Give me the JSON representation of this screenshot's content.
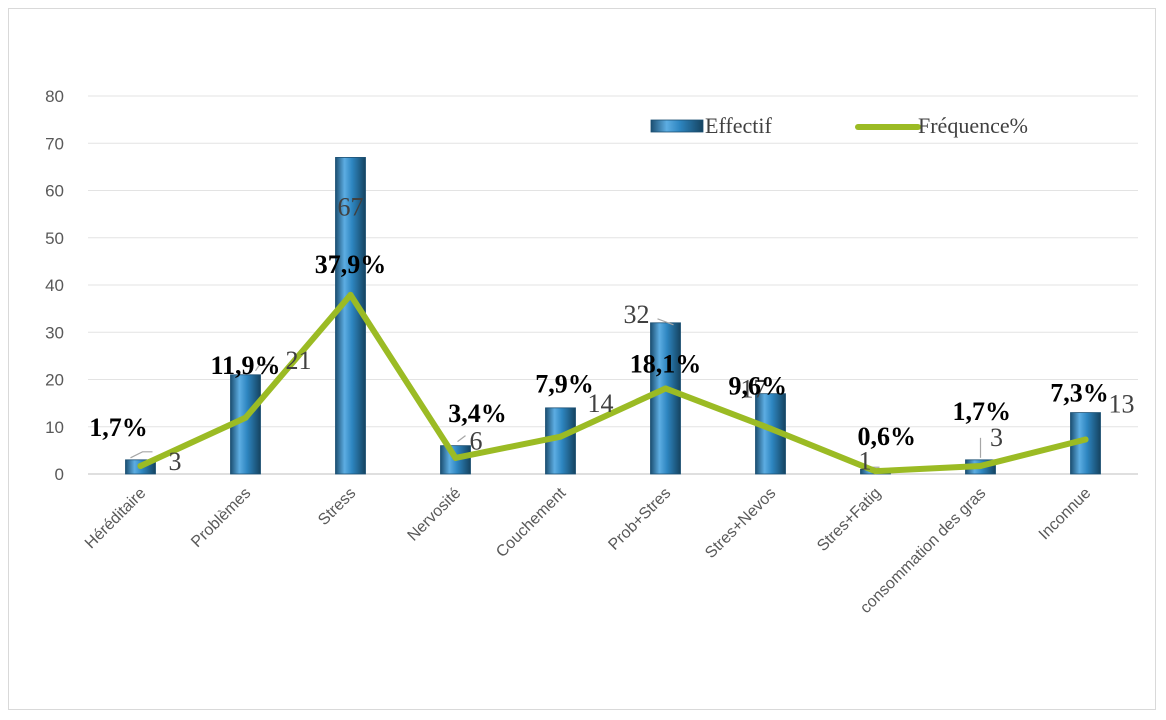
{
  "chart_data": {
    "type": "bar",
    "categories": [
      "Héréditaire",
      "Problèmes",
      "Stress",
      "Nervosité",
      "Couchement",
      "Prob+Stres",
      "Stres+Nevos",
      "Stres+Fatig",
      "consommation des gras",
      "Inconnue"
    ],
    "ylim": [
      0,
      80
    ],
    "yticks": [
      0,
      10,
      20,
      30,
      40,
      50,
      60,
      70,
      80
    ],
    "grid": true,
    "legend_position": "top-right",
    "series": [
      {
        "name": "Effectif",
        "type": "bar",
        "color": "#2e86c1",
        "values": [
          3,
          21,
          67,
          6,
          14,
          32,
          17,
          1,
          3,
          13
        ],
        "labels": [
          "3",
          "21",
          "67",
          "6",
          "14",
          "32",
          "17",
          "1",
          "3",
          "13"
        ]
      },
      {
        "name": "Fréquence%",
        "type": "line",
        "color": "#9bbb24",
        "values": [
          1.7,
          11.9,
          37.9,
          3.4,
          7.9,
          18.1,
          9.6,
          0.6,
          1.7,
          7.3
        ],
        "labels": [
          "1,7%",
          "11,9%",
          "37,9%",
          "3,4%",
          "7,9%",
          "18,1%",
          "9,6%",
          "0,6%",
          "1,7%",
          "7,3%"
        ]
      }
    ]
  }
}
